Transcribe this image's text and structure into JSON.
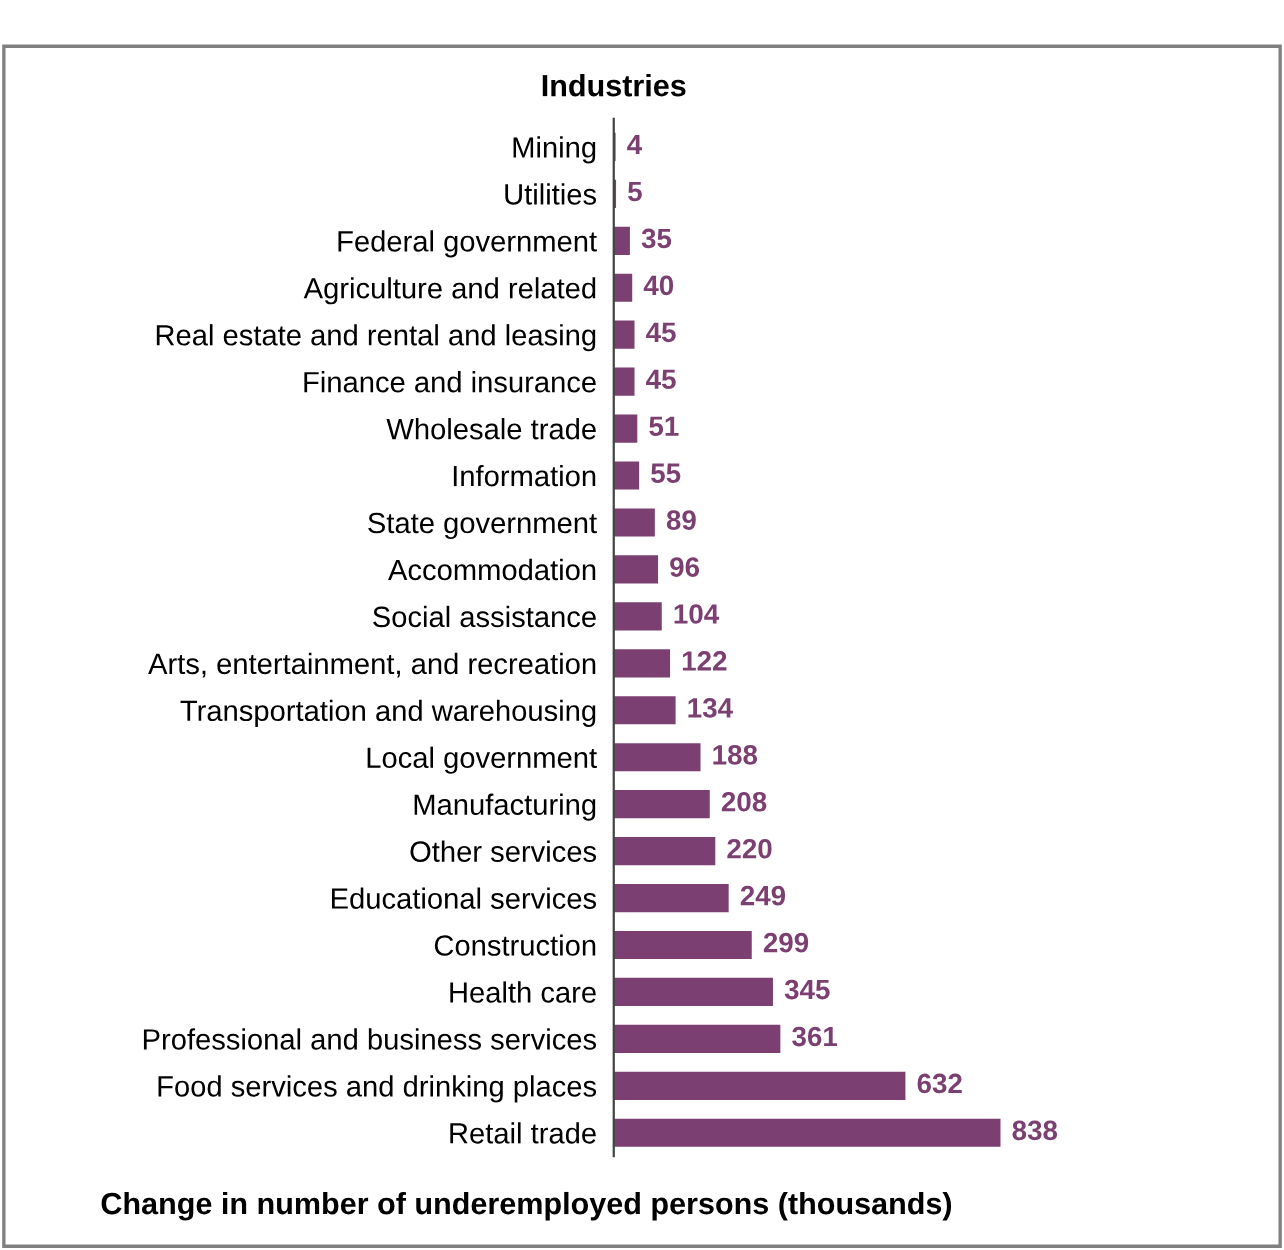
{
  "chart_data": {
    "type": "bar",
    "orientation": "horizontal",
    "ylabel": "Industries",
    "xlabel": "Change in number of underemployed persons (thousands)",
    "categories": [
      "Mining",
      "Utilities",
      "Federal government",
      "Agriculture and related",
      "Real estate and rental and leasing",
      "Finance and insurance",
      "Wholesale trade",
      "Information",
      "State government",
      "Accommodation",
      "Social assistance",
      "Arts, entertainment, and recreation",
      "Transportation and warehousing",
      "Local government",
      "Manufacturing",
      "Other services",
      "Educational services",
      "Construction",
      "Health care",
      "Professional and business services",
      "Food services and drinking places",
      "Retail trade"
    ],
    "values": [
      4,
      5,
      35,
      40,
      45,
      45,
      51,
      55,
      89,
      96,
      104,
      122,
      134,
      188,
      208,
      220,
      249,
      299,
      345,
      361,
      632,
      838
    ],
    "color": "#7b3f72",
    "data_labels": true,
    "grid": false,
    "legend": false
  }
}
